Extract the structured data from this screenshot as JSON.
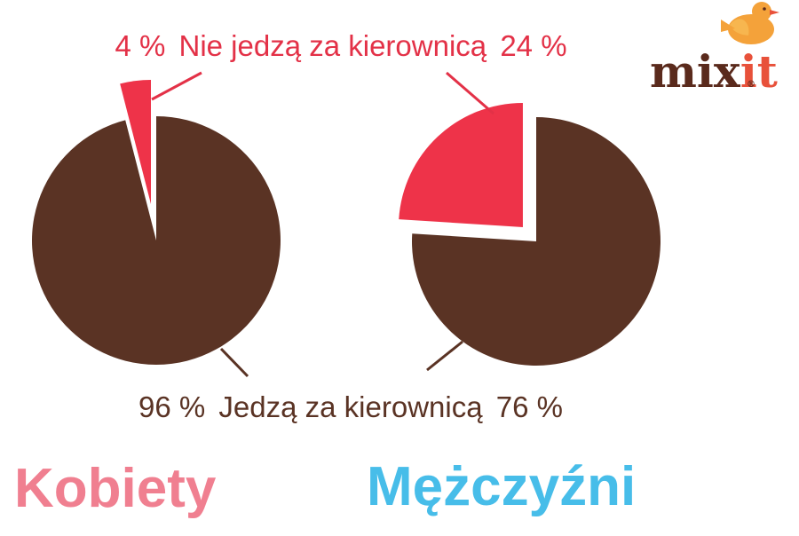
{
  "brand": {
    "logo_text": "mixit",
    "logo_registered": "®",
    "text_color": "#5a2a1c",
    "accent_color": "#e8513a",
    "bird_color": "#f4a23a"
  },
  "labels": {
    "top_left_value": "4 %",
    "top_category": "Nie jedzą za kierownicą",
    "top_right_value": "24 %",
    "bottom_left_value": "96 %",
    "bottom_category": "Jedzą za kierownicą",
    "bottom_right_value": "76 %"
  },
  "groups": {
    "women": "Kobiety",
    "men": "Mężczyźni"
  },
  "colors": {
    "brown": "#5a3324",
    "red": "#ee3349",
    "label_red": "#e33147",
    "label_brown": "#5a3324",
    "women": "#f07f90",
    "men": "#47bde9"
  },
  "chart_data": [
    {
      "type": "pie",
      "categories": [
        "Nie jedzą za kierownicą",
        "Jedzą za kierownicą"
      ],
      "values": [
        4,
        96
      ],
      "unit": "%",
      "exploded": "Nie jedzą za kierownicą",
      "caption": "Kobiety"
    },
    {
      "type": "pie",
      "categories": [
        "Nie jedzą za kierownicą",
        "Jedzą za kierownicą"
      ],
      "values": [
        24,
        76
      ],
      "unit": "%",
      "exploded": "Nie jedzą za kierownicą",
      "caption": "Mężczyźni"
    }
  ]
}
